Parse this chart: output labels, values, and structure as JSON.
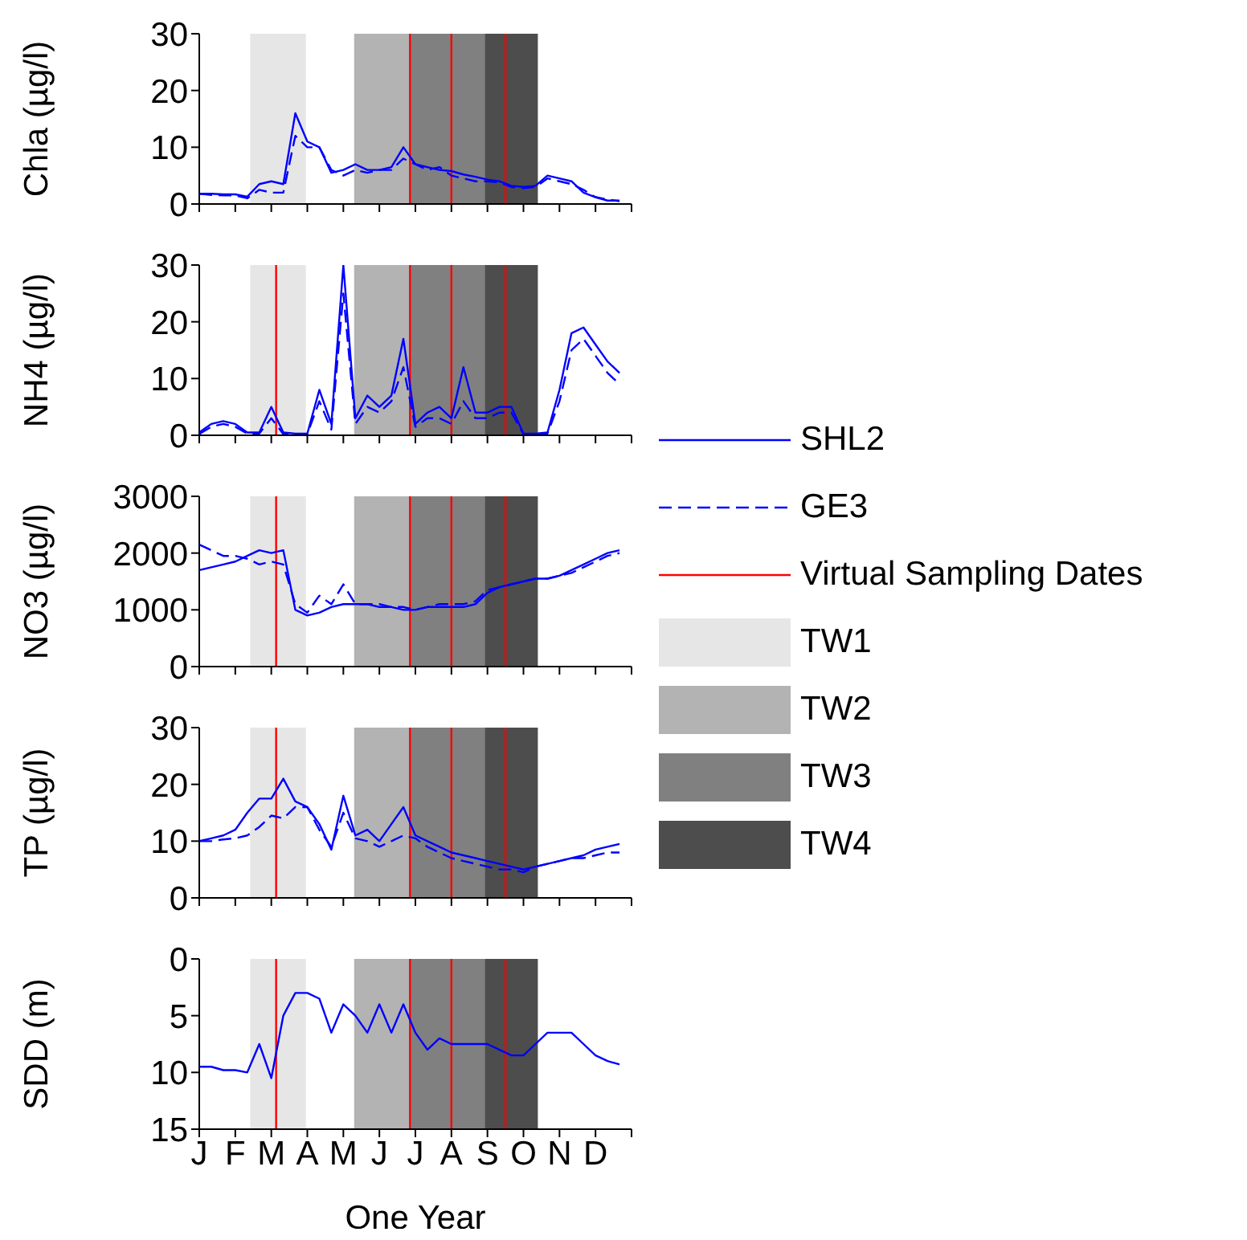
{
  "chart_data": [
    {
      "type": "line",
      "ylabel": "Chla (µg/l)",
      "tick_labels": "y",
      "ylim": [
        0,
        30
      ],
      "yticks": [
        0,
        10,
        20,
        30
      ],
      "categories": [
        null,
        null,
        null,
        null,
        null,
        null,
        null,
        null,
        null,
        null,
        null,
        null,
        null,
        null,
        null,
        null,
        null,
        null,
        null,
        null,
        null,
        null,
        null,
        null,
        null,
        null,
        null,
        null,
        null,
        null,
        null,
        null,
        null,
        null,
        null,
        null
      ],
      "series": [
        {
          "color": "#0000ff",
          "line_style": "solid",
          "values": [
            1.8,
            1.8,
            1.7,
            1.7,
            1.3,
            3.5,
            4,
            3.5,
            16,
            11,
            10,
            5.5,
            6,
            7,
            6,
            6,
            6.5,
            10,
            7,
            6.5,
            6,
            5.8,
            5.2,
            4.8,
            4.3,
            4,
            3.2,
            3,
            3.2,
            5,
            4.5,
            4,
            2,
            1.2,
            0.6,
            0.6
          ]
        },
        {
          "color": "#0000ff",
          "line_style": "dashed",
          "values": [
            1.8,
            1.6,
            1.5,
            1.5,
            1,
            2.5,
            2,
            2,
            12,
            10,
            10,
            6,
            5,
            6,
            5.5,
            6,
            6,
            8,
            7,
            6,
            6.5,
            5,
            4.5,
            4,
            4,
            3.8,
            3,
            2.8,
            3,
            4.5,
            4,
            3.5,
            2.5,
            1.2,
            0.8,
            0.5
          ]
        }
      ]
    },
    {
      "type": "line",
      "ylabel": "NH4 (µg/l)",
      "tick_labels": "y",
      "ylim": [
        0,
        30
      ],
      "yticks": [
        0,
        10,
        20,
        30
      ],
      "categories": [
        null,
        null,
        null,
        null,
        null,
        null,
        null,
        null,
        null,
        null,
        null,
        null,
        null,
        null,
        null,
        null,
        null,
        null,
        null,
        null,
        null,
        null,
        null,
        null,
        null,
        null,
        null,
        null,
        null,
        null,
        null,
        null,
        null,
        null,
        null,
        null
      ],
      "series": [
        {
          "color": "#0000ff",
          "line_style": "solid",
          "values": [
            0.5,
            2,
            2.5,
            2,
            0.5,
            0.5,
            5,
            0.5,
            0.3,
            0.3,
            8,
            2,
            30,
            3,
            7,
            5,
            7,
            17,
            2,
            4,
            5,
            3,
            12,
            4,
            4,
            5,
            5,
            0.3,
            0.3,
            0.5,
            8,
            18,
            19,
            16,
            13,
            11
          ]
        },
        {
          "color": "#0000ff",
          "line_style": "dashed",
          "values": [
            0.2,
            1.5,
            2,
            1.5,
            0.3,
            0.3,
            3,
            0.2,
            0.2,
            0.2,
            6,
            1,
            25,
            2,
            5,
            4,
            6,
            12,
            1.5,
            3,
            3,
            2,
            6,
            3,
            3,
            4,
            4,
            0.2,
            0.2,
            0.3,
            6,
            15,
            17,
            14,
            11,
            9
          ]
        }
      ]
    },
    {
      "type": "line",
      "ylabel": "NO3 (µg/l)",
      "tick_labels": "y",
      "legend": "right",
      "ylim": [
        0,
        3000
      ],
      "yticks": [
        0,
        1000,
        2000,
        3000
      ],
      "categories": [
        null,
        null,
        null,
        null,
        null,
        null,
        null,
        null,
        null,
        null,
        null,
        null,
        null,
        null,
        null,
        null,
        null,
        null,
        null,
        null,
        null,
        null,
        null,
        null,
        null,
        null,
        null,
        null,
        null,
        null,
        null,
        null,
        null,
        null,
        null,
        null
      ],
      "series": [
        {
          "name": "SHL2",
          "color": "#0000ff",
          "line_style": "solid",
          "values": [
            1700,
            1750,
            1800,
            1850,
            1950,
            2050,
            2000,
            2050,
            1000,
            900,
            950,
            1050,
            1100,
            1100,
            1100,
            1050,
            1050,
            1000,
            1000,
            1050,
            1050,
            1050,
            1050,
            1100,
            1300,
            1400,
            1450,
            1500,
            1550,
            1550,
            1600,
            1700,
            1800,
            1900,
            2000,
            2050
          ]
        },
        {
          "name": "GE3",
          "color": "#0000ff",
          "line_style": "dashed",
          "values": [
            2150,
            2050,
            1950,
            1950,
            1900,
            1800,
            1850,
            1800,
            1100,
            950,
            1250,
            1100,
            1450,
            1100,
            1100,
            1100,
            1050,
            1050,
            1000,
            1050,
            1100,
            1100,
            1100,
            1150,
            1350,
            1400,
            1450,
            1500,
            1550,
            1550,
            1600,
            1650,
            1750,
            1850,
            1950,
            2000
          ]
        }
      ],
      "ref_lines": [
        {
          "axis": "x",
          "color": "#ff0000",
          "label": "Virtual Sampling Dates"
        }
      ],
      "annotations": [
        "TW1",
        "TW2",
        "TW3",
        "TW4"
      ]
    },
    {
      "type": "line",
      "ylabel": "TP (µg/l)",
      "tick_labels": "y",
      "ylim": [
        0,
        30
      ],
      "yticks": [
        0,
        10,
        20,
        30
      ],
      "categories": [
        null,
        null,
        null,
        null,
        null,
        null,
        null,
        null,
        null,
        null,
        null,
        null,
        null,
        null,
        null,
        null,
        null,
        null,
        null,
        null,
        null,
        null,
        null,
        null,
        null,
        null,
        null,
        null,
        null,
        null,
        null,
        null,
        null,
        null,
        null,
        null
      ],
      "series": [
        {
          "color": "#0000ff",
          "line_style": "solid",
          "values": [
            10,
            10.5,
            11,
            12,
            15,
            17.5,
            17.5,
            21,
            17,
            16,
            13,
            8.5,
            18,
            11,
            12,
            10,
            13,
            16,
            11,
            10,
            9,
            8,
            7.5,
            7,
            6.5,
            6,
            5.5,
            5,
            5.5,
            6,
            6.5,
            7,
            7.5,
            8.5,
            9,
            9.5
          ]
        },
        {
          "color": "#0000ff",
          "line_style": "dashed",
          "values": [
            10,
            10,
            10.3,
            10.5,
            11,
            12.5,
            14.5,
            14,
            16,
            16,
            12,
            9,
            15,
            10.5,
            10,
            9,
            10,
            11,
            10.5,
            9,
            8,
            7,
            6.5,
            6,
            5.5,
            5,
            5,
            4.5,
            5.5,
            6,
            6.5,
            7,
            7,
            7.5,
            8,
            8
          ]
        }
      ]
    },
    {
      "type": "line",
      "ylabel": "SDD (m)",
      "xlabel": "One Year",
      "ylim": [
        15,
        0
      ],
      "yticks": [
        0,
        5,
        10,
        15
      ],
      "categories": [
        "J",
        null,
        null,
        "F",
        null,
        null,
        "M",
        null,
        null,
        "A",
        null,
        null,
        "M",
        null,
        null,
        "J",
        null,
        null,
        "J",
        null,
        null,
        "A",
        null,
        null,
        "S",
        null,
        null,
        "O",
        null,
        null,
        "N",
        null,
        null,
        "D",
        null,
        null
      ],
      "series": [
        {
          "color": "#0000ff",
          "line_style": "solid",
          "values": [
            9.5,
            9.5,
            9.8,
            9.8,
            10,
            7.5,
            10.5,
            5,
            3,
            3,
            3.5,
            6.5,
            4,
            5,
            6.5,
            4,
            6.5,
            4,
            6.5,
            8,
            7,
            7.5,
            7.5,
            7.5,
            7.5,
            8,
            8.5,
            8.5,
            7.5,
            6.5,
            6.5,
            6.5,
            7.5,
            8.5,
            9,
            9.3
          ]
        }
      ]
    }
  ]
}
